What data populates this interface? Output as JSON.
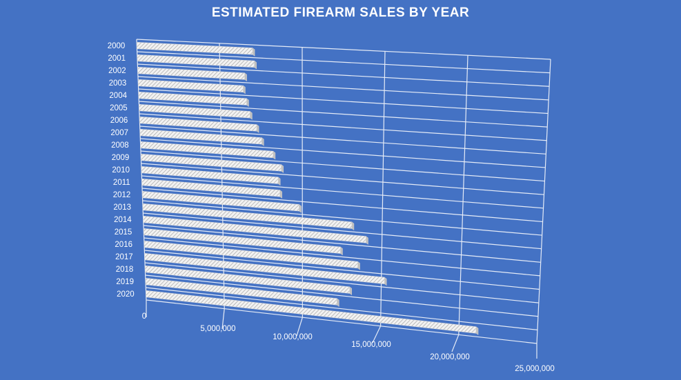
{
  "chart_data": {
    "type": "bar",
    "orientation": "horizontal",
    "perspective": "3d",
    "title": "ESTIMATED FIREARM SALES BY YEAR",
    "categories": [
      "2000",
      "2001",
      "2002",
      "2003",
      "2004",
      "2005",
      "2006",
      "2007",
      "2008",
      "2009",
      "2010",
      "2011",
      "2012",
      "2013",
      "2014",
      "2015",
      "2016",
      "2017",
      "2018",
      "2019",
      "2020"
    ],
    "series": [
      {
        "values": [
          7000000,
          7100000,
          6500000,
          6400000,
          6600000,
          6800000,
          7200000,
          7500000,
          8200000,
          8700000,
          8500000,
          8600000,
          9800000,
          13100000,
          14000000,
          12400000,
          13500000,
          15200000,
          13000000,
          12200000,
          21100000
        ]
      }
    ],
    "xlim": [
      0,
      25000000
    ],
    "xticks": [
      "0",
      "5,000,000",
      "10,000,000",
      "15,000,000",
      "20,000,000",
      "25,000,000"
    ],
    "grid": true,
    "colors": {
      "background": "#4472C4",
      "bar": "#f2f2f2",
      "bar_hatch": "#a6a6a6",
      "grid": "#e6ecf7",
      "text": "#ffffff"
    }
  }
}
